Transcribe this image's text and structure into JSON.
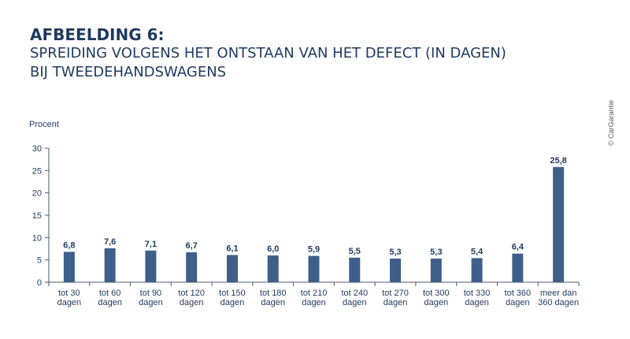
{
  "heading": {
    "line1": "AFBEELDING 6:",
    "line2": "SPREIDING VOLGENS HET ONTSTAAN VAN HET DEFECT (IN DAGEN)",
    "line3": "BIJ TWEEDEHANDSWAGENS"
  },
  "copyright": "© CarGarantie",
  "chart_data": {
    "type": "bar",
    "ylabel": "Procent",
    "ylim": [
      0,
      30
    ],
    "yticks": [
      0,
      5,
      10,
      15,
      20,
      25,
      30
    ],
    "grid": false,
    "categories": [
      [
        "tot 30",
        "dagen"
      ],
      [
        "tot 60",
        "dagen"
      ],
      [
        "tot 90",
        "dagen"
      ],
      [
        "tot 120",
        "dagen"
      ],
      [
        "tot 150",
        "dagen"
      ],
      [
        "tot 180",
        "dagen"
      ],
      [
        "tot 210",
        "dagen"
      ],
      [
        "tot 240",
        "dagen"
      ],
      [
        "tot 270",
        "dagen"
      ],
      [
        "tot 300",
        "dagen"
      ],
      [
        "tot 330",
        "dagen"
      ],
      [
        "tot 360",
        "dagen"
      ],
      [
        "meer dan",
        "360 dagen"
      ]
    ],
    "values": [
      6.8,
      7.6,
      7.1,
      6.7,
      6.1,
      6.0,
      5.9,
      5.5,
      5.3,
      5.3,
      5.4,
      6.4,
      25.8
    ],
    "data_labels": [
      "6,8",
      "7,6",
      "7,1",
      "6,7",
      "6,1",
      "6,0",
      "5,9",
      "5,5",
      "5,3",
      "5,3",
      "5,4",
      "6,4",
      "25,8"
    ],
    "bar_color": "#3e5f8a"
  }
}
